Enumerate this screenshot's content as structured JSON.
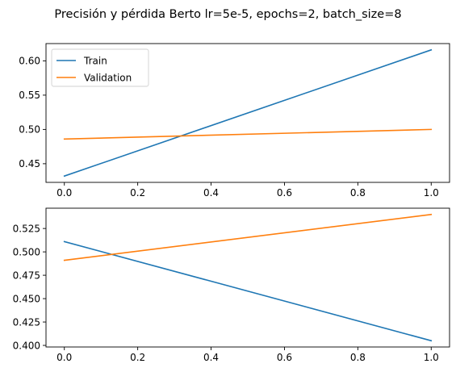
{
  "figure": {
    "suptitle": "Precisión y pérdida Berto lr=5e-5, epochs=2, batch_size=8"
  },
  "colors": {
    "train": "#1f77b4",
    "validation": "#ff7f0e"
  },
  "chart_data": [
    {
      "type": "line",
      "title": "",
      "xlabel": "",
      "ylabel": "",
      "x": [
        0.0,
        1.0
      ],
      "series": [
        {
          "name": "Train",
          "values": [
            0.432,
            0.616
          ]
        },
        {
          "name": "Validation",
          "values": [
            0.486,
            0.5
          ]
        }
      ],
      "xlim": [
        -0.05,
        1.05
      ],
      "ylim": [
        0.4228,
        0.6252
      ],
      "xticks": [
        0.0,
        0.2,
        0.4,
        0.6,
        0.8,
        1.0
      ],
      "xtick_labels": [
        "0.0",
        "0.2",
        "0.4",
        "0.6",
        "0.8",
        "1.0"
      ],
      "yticks": [
        0.45,
        0.5,
        0.55,
        0.6
      ],
      "ytick_labels": [
        "0.45",
        "0.50",
        "0.55",
        "0.60"
      ],
      "grid": false,
      "legend": {
        "placement": "upper-left",
        "entries": [
          "Train",
          "Validation"
        ]
      }
    },
    {
      "type": "line",
      "title": "",
      "xlabel": "",
      "ylabel": "",
      "x": [
        0.0,
        1.0
      ],
      "series": [
        {
          "values": [
            0.511,
            0.405
          ]
        },
        {
          "values": [
            0.491,
            0.54
          ]
        }
      ],
      "xlim": [
        -0.05,
        1.05
      ],
      "ylim": [
        0.3983,
        0.5467
      ],
      "xticks": [
        0.0,
        0.2,
        0.4,
        0.6,
        0.8,
        1.0
      ],
      "xtick_labels": [
        "0.0",
        "0.2",
        "0.4",
        "0.6",
        "0.8",
        "1.0"
      ],
      "yticks": [
        0.4,
        0.425,
        0.45,
        0.475,
        0.5,
        0.525
      ],
      "ytick_labels": [
        "0.400",
        "0.425",
        "0.450",
        "0.475",
        "0.500",
        "0.525"
      ],
      "grid": false,
      "legend": null
    }
  ]
}
